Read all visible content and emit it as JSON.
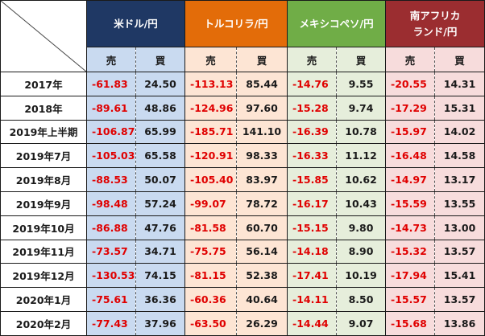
{
  "currencies": [
    {
      "label": "米ドル/円",
      "header_color": "#1f3864",
      "body_color": "#c9daf0"
    },
    {
      "label": "トルコリラ/円",
      "header_color": "#e36c09",
      "body_color": "#fde5d4"
    },
    {
      "label": "メキシコペソ/円",
      "header_color": "#70ad47",
      "body_color": "#e6eedb"
    },
    {
      "label": "南アフリカランド/円",
      "label_line1": "南アフリカ",
      "label_line2": "ランド/円",
      "header_color": "#9b2d30",
      "body_color": "#f7dcdc"
    }
  ],
  "sub_headers": {
    "sell": "売",
    "buy": "買"
  },
  "rows": [
    {
      "period": "2017年",
      "values": [
        "-61.83",
        "24.50",
        "-113.13",
        "85.44",
        "-14.76",
        "9.55",
        "-20.55",
        "14.31"
      ]
    },
    {
      "period": "2018年",
      "values": [
        "-89.61",
        "48.86",
        "-124.96",
        "97.60",
        "-15.28",
        "9.74",
        "-17.29",
        "15.31"
      ]
    },
    {
      "period": "2019年上半期",
      "values": [
        "-106.87",
        "65.99",
        "-185.71",
        "141.10",
        "-16.39",
        "10.78",
        "-15.97",
        "14.02"
      ]
    },
    {
      "period": "2019年7月",
      "values": [
        "-105.03",
        "65.58",
        "-120.91",
        "98.33",
        "-16.33",
        "11.12",
        "-16.48",
        "14.58"
      ]
    },
    {
      "period": "2019年8月",
      "values": [
        "-88.53",
        "50.07",
        "-105.40",
        "83.97",
        "-15.85",
        "10.62",
        "-14.97",
        "13.17"
      ]
    },
    {
      "period": "2019年9月",
      "values": [
        "-98.48",
        "57.24",
        "-99.07",
        "78.72",
        "-16.17",
        "10.43",
        "-15.59",
        "13.55"
      ]
    },
    {
      "period": "2019年10月",
      "values": [
        "-86.88",
        "47.76",
        "-81.58",
        "60.70",
        "-15.15",
        "9.80",
        "-14.73",
        "13.00"
      ]
    },
    {
      "period": "2019年11月",
      "values": [
        "-73.57",
        "34.71",
        "-75.75",
        "56.14",
        "-14.18",
        "8.90",
        "-15.32",
        "13.57"
      ]
    },
    {
      "period": "2019年12月",
      "values": [
        "-130.53",
        "74.15",
        "-81.15",
        "52.38",
        "-17.41",
        "10.19",
        "-17.94",
        "15.41"
      ]
    },
    {
      "period": "2020年1月",
      "values": [
        "-75.61",
        "36.36",
        "-60.36",
        "40.64",
        "-14.11",
        "8.50",
        "-15.57",
        "13.57"
      ]
    },
    {
      "period": "2020年2月",
      "values": [
        "-77.43",
        "37.96",
        "-63.50",
        "26.29",
        "-14.44",
        "9.07",
        "-15.68",
        "13.86"
      ]
    }
  ]
}
